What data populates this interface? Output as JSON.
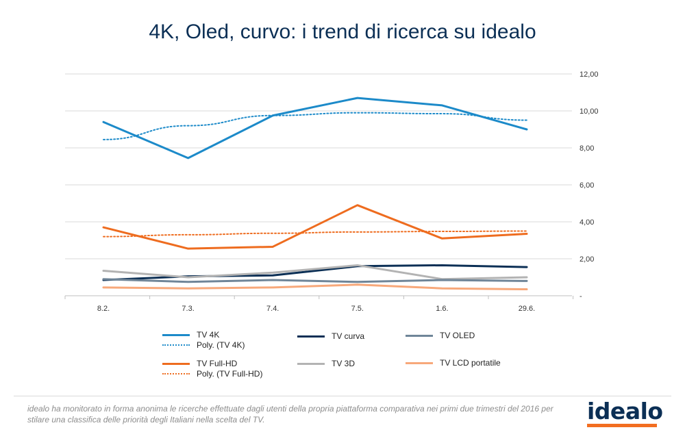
{
  "title": "4K, Oled, curvo: i trend di ricerca su idealo",
  "chart_data": {
    "type": "line",
    "categories": [
      "8.2.",
      "7.3.",
      "7.4.",
      "7.5.",
      "1.6.",
      "29.6."
    ],
    "y_ticks": [
      "-",
      "2,00",
      "4,00",
      "6,00",
      "8,00",
      "10,00",
      "12,00"
    ],
    "ylim": [
      0,
      12
    ],
    "grid": true,
    "y_axis_side": "right",
    "legend_position": "bottom",
    "series": [
      {
        "name": "TV 4K",
        "values": [
          9.4,
          7.45,
          9.75,
          10.7,
          10.3,
          9.0
        ],
        "color": "#1c8ac9",
        "style": "solid",
        "width": 3
      },
      {
        "name": "Poly. (TV 4K)",
        "values": [
          8.45,
          9.2,
          9.75,
          9.9,
          9.85,
          9.5
        ],
        "color": "#1c8ac9",
        "style": "dotted",
        "width": 2
      },
      {
        "name": "TV Full-HD",
        "values": [
          3.7,
          2.55,
          2.65,
          4.9,
          3.1,
          3.35
        ],
        "color": "#ee6c1f",
        "style": "solid",
        "width": 3
      },
      {
        "name": "Poly. (TV Full-HD)",
        "values": [
          3.2,
          3.3,
          3.38,
          3.45,
          3.48,
          3.5
        ],
        "color": "#ee6c1f",
        "style": "dotted",
        "width": 2
      },
      {
        "name": "TV curva",
        "values": [
          0.85,
          1.05,
          1.1,
          1.6,
          1.65,
          1.55
        ],
        "color": "#0b2f55",
        "style": "solid",
        "width": 3
      },
      {
        "name": "TV 3D",
        "values": [
          1.35,
          1.0,
          1.25,
          1.65,
          0.9,
          1.0
        ],
        "color": "#b3b3b3",
        "style": "solid",
        "width": 3
      },
      {
        "name": "TV OLED",
        "values": [
          0.9,
          0.75,
          0.85,
          0.75,
          0.85,
          0.8
        ],
        "color": "#6f8598",
        "style": "solid",
        "width": 3
      },
      {
        "name": "TV LCD portatile",
        "values": [
          0.45,
          0.4,
          0.45,
          0.6,
          0.4,
          0.35
        ],
        "color": "#f7a87a",
        "style": "solid",
        "width": 3
      }
    ]
  },
  "footer": {
    "note": "idealo ha monitorato in forma anonima le ricerche effettuate dagli utenti della propria piattaforma comparativa nei primi due trimestri del 2016 per stilare una classifica delle priorità degli Italiani nella scelta del TV.",
    "logo_text": "idealo",
    "logo_color": "#0b2f55",
    "logo_bar_color": "#f26e21"
  }
}
